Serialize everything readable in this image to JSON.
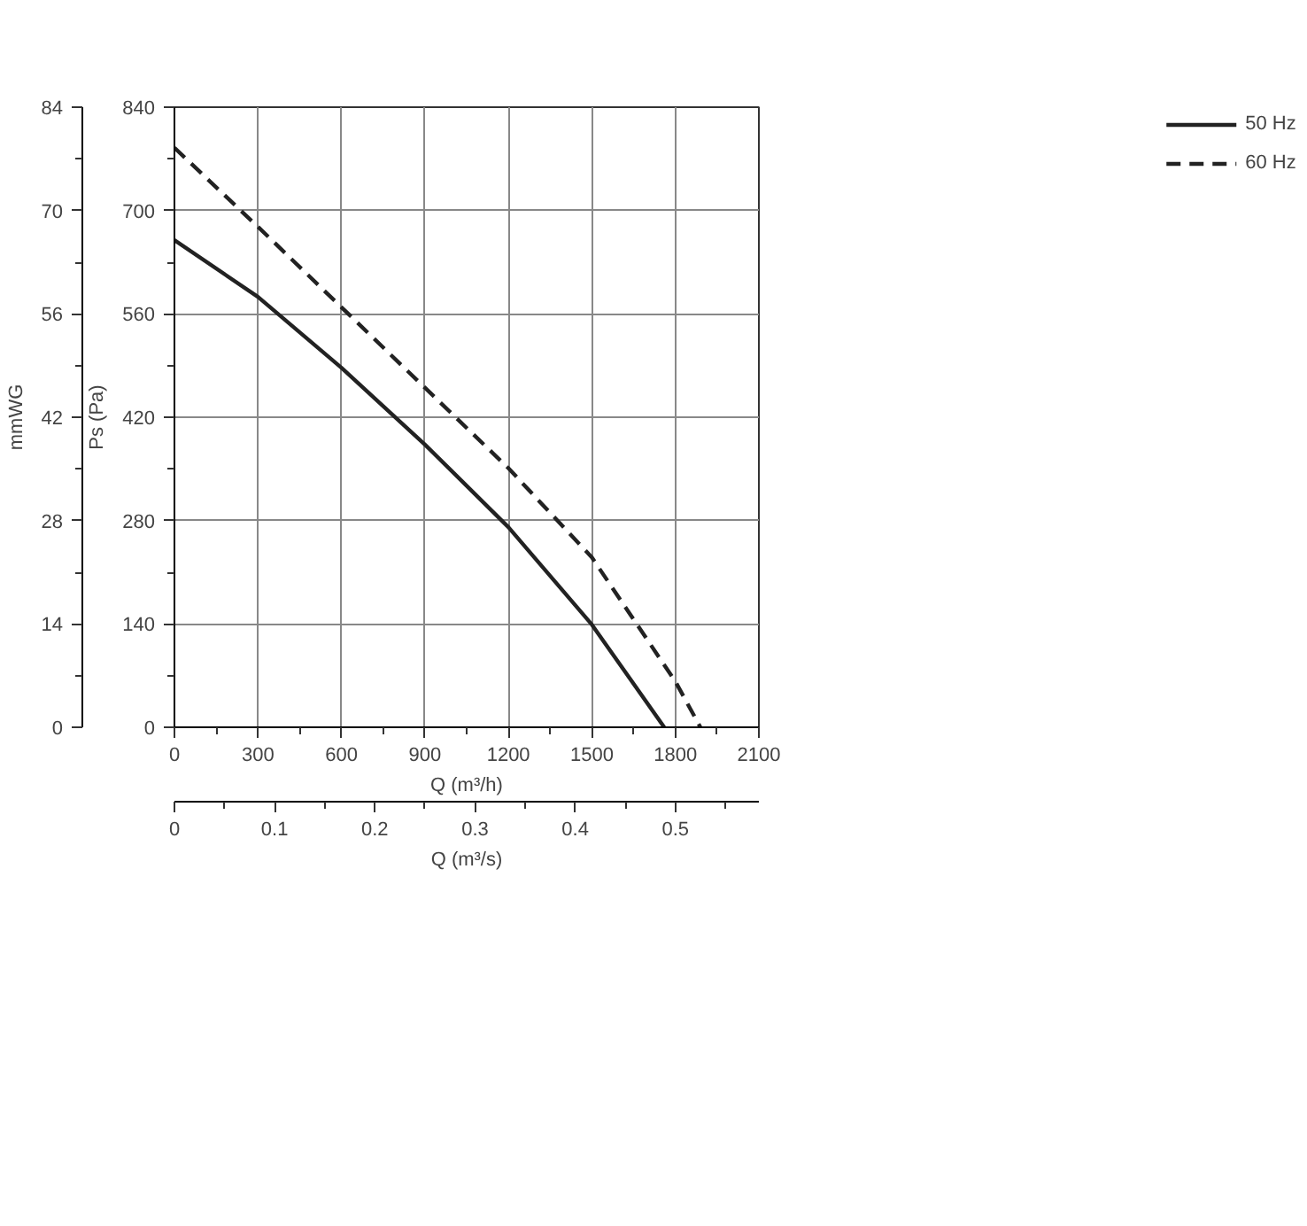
{
  "chart_data": {
    "type": "line",
    "xlabel": "Q (m³/h)",
    "ylabel": "Ps (Pa)",
    "y2label": "mmWG",
    "x2label": "Q (m³/s)",
    "xlim": [
      0,
      2100
    ],
    "xticks": [
      0,
      300,
      600,
      900,
      1200,
      1500,
      1800,
      2100
    ],
    "ylim": [
      0,
      840
    ],
    "yticks": [
      0,
      140,
      280,
      420,
      560,
      700,
      840
    ],
    "y2lim": [
      0,
      84
    ],
    "y2ticks": [
      0,
      14,
      28,
      42,
      56,
      70,
      84
    ],
    "x2lim": [
      0,
      0.5833
    ],
    "x2ticks": [
      0,
      0.1,
      0.2,
      0.3,
      0.4,
      0.5
    ],
    "grid": true,
    "legend": "top right",
    "series": [
      {
        "name": "50 Hz",
        "color": "#222222",
        "line_style": "solid",
        "x": [
          0,
          300,
          600,
          900,
          1200,
          1500,
          1760
        ],
        "values": [
          660,
          583,
          487,
          383,
          271,
          139,
          0
        ]
      },
      {
        "name": "60 Hz",
        "color": "#222222",
        "line_style": "dashed",
        "x": [
          0,
          300,
          600,
          900,
          1200,
          1500,
          1800,
          1890
        ],
        "values": [
          785,
          678,
          569,
          460,
          351,
          230,
          62,
          0
        ]
      }
    ]
  }
}
